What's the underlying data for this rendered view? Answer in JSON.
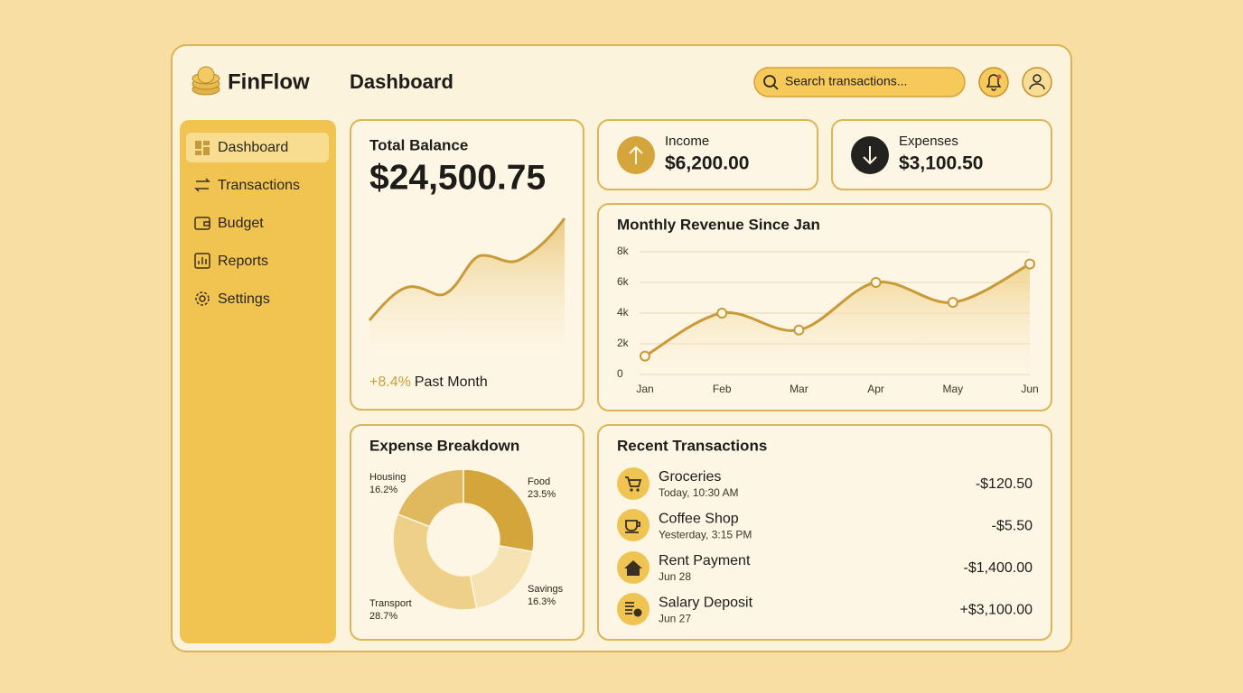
{
  "brand": "FinFlow",
  "page_title": "Dashboard",
  "search_placeholder": "Search transactions...",
  "sidebar": [
    "Dashboard",
    "Transactions",
    "Budget",
    "Reports",
    "Settings"
  ],
  "balance": {
    "title": "Total Balance",
    "amount": "$24,500.75",
    "change": "+8.4%",
    "period": "Past Month"
  },
  "income": {
    "label": "Income",
    "amount": "$6,200.00"
  },
  "expenses": {
    "label": "Expenses",
    "amount": "$3,100.50"
  },
  "transactions": {
    "title": "Recent Transactions",
    "rows": [
      {
        "name": "Groceries",
        "time": "Today, 10:30 AM",
        "amount": "-$120.50"
      },
      {
        "name": "Coffee Shop",
        "time": "Yesterday, 3:15 PM",
        "amount": "-$5.50"
      },
      {
        "name": "Rent Payment",
        "time": "Jun 28",
        "amount": "-$1,400.00"
      },
      {
        "name": "Salary Deposit",
        "time": "Jun 27",
        "amount": "+$3,100.00"
      }
    ]
  },
  "chart_data": [
    {
      "type": "line",
      "title": "Monthly Revenue Since Jan",
      "categories": [
        "Jan",
        "Feb",
        "Mar",
        "Apr",
        "May",
        "Jun"
      ],
      "values": [
        1200,
        4000,
        2900,
        6000,
        4700,
        7200
      ],
      "color": "#c99a3a",
      "ylim": [
        0,
        8000
      ],
      "yticks": [
        0,
        {
          "value": 2000,
          "label": "2k"
        },
        {
          "value": 4000,
          "label": "4k"
        },
        {
          "value": 6000,
          "label": "6k"
        },
        {
          "value": 8000,
          "label": "8k"
        }
      ],
      "grid": true
    },
    {
      "type": "pie",
      "title": "Expense Breakdown",
      "categories": [
        "Food",
        "Savings",
        "Transport",
        "Housing"
      ],
      "values": [
        23.5,
        16.3,
        28.7,
        16.2
      ],
      "value_labels": [
        "23.5%",
        "16.3%",
        "28.7%",
        "16.2%"
      ],
      "colors": [
        "#d4a53a",
        "#f6e3b3",
        "#eed089",
        "#e0b95f"
      ]
    }
  ]
}
